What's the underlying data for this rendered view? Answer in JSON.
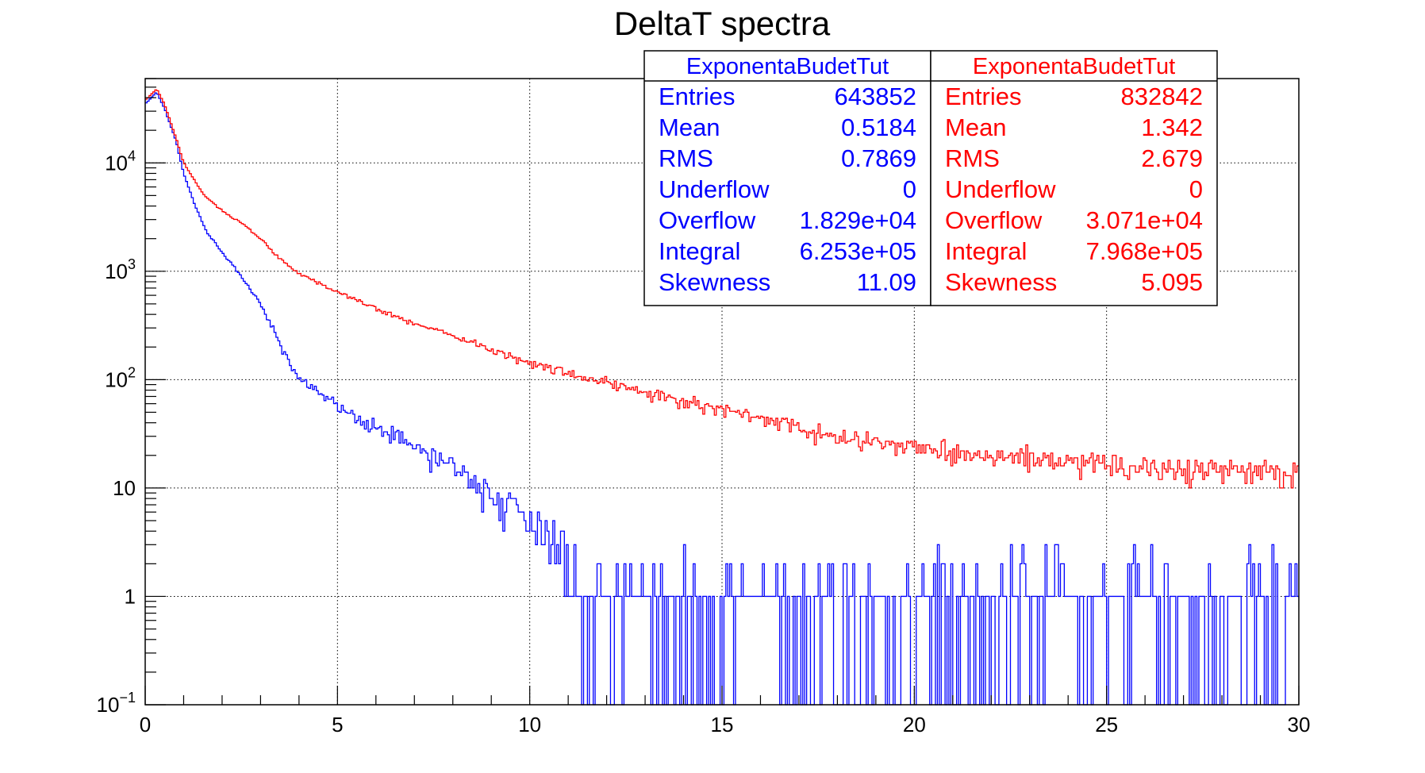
{
  "chart_data": {
    "type": "line",
    "title": "DeltaT spectra",
    "xlabel": "",
    "ylabel": "",
    "xlim": [
      0,
      30
    ],
    "ylim": [
      0.1,
      60000
    ],
    "yscale": "log",
    "grid": true,
    "x_ticks": [
      0,
      5,
      10,
      15,
      20,
      25,
      30
    ],
    "x_tick_labels": [
      "0",
      "5",
      "10",
      "15",
      "20",
      "25",
      "30"
    ],
    "y_ticks": [
      0.1,
      1,
      10,
      100,
      1000,
      10000
    ],
    "y_tick_labels": [
      {
        "base": "10",
        "exp": "−1"
      },
      {
        "base": "1",
        "exp": ""
      },
      {
        "base": "10",
        "exp": ""
      },
      {
        "base": "10",
        "exp": "2"
      },
      {
        "base": "10",
        "exp": "3"
      },
      {
        "base": "10",
        "exp": "4"
      }
    ],
    "series": [
      {
        "color": "#0000ff",
        "x": [
          0.0,
          0.3,
          0.5,
          0.8,
          1.0,
          1.3,
          1.6,
          2.0,
          2.5,
          3.0,
          3.3,
          3.6,
          4.0,
          4.5,
          5.0,
          5.5,
          6.0,
          6.5,
          7.0,
          8.0,
          9.0,
          10.0,
          11.0,
          12.0,
          13.0,
          15.0,
          17.0,
          20.0,
          25.0,
          30.0
        ],
        "y_peak": [
          35000,
          45000,
          32000,
          16000,
          8000,
          4000,
          2300,
          1500,
          900,
          500,
          300,
          180,
          100,
          75,
          55,
          45,
          38,
          30,
          24,
          16,
          9,
          5,
          3,
          2,
          1.6,
          1.2,
          1.1,
          1.0,
          1.0,
          1.0
        ]
      },
      {
        "color": "#ff0000",
        "x": [
          0.0,
          0.3,
          0.5,
          0.8,
          1.0,
          1.5,
          2.0,
          2.5,
          3.0,
          3.5,
          4.0,
          5.0,
          6.0,
          7.0,
          8.0,
          9.0,
          10.0,
          11.0,
          12.0,
          13.0,
          14.0,
          15.0,
          16.0,
          17.0,
          18.0,
          20.0,
          22.0,
          25.0,
          27.0,
          30.0
        ],
        "y_peak": [
          38000,
          48000,
          35000,
          17000,
          10000,
          5200,
          3600,
          2800,
          2000,
          1300,
          950,
          650,
          450,
          330,
          250,
          190,
          145,
          115,
          92,
          76,
          63,
          53,
          43,
          36,
          30,
          24,
          20,
          16,
          15,
          14
        ]
      }
    ],
    "stats_boxes": [
      {
        "title": "ExponentaBudetTut",
        "color": "#0000ff",
        "rows": [
          {
            "label": "Entries",
            "value": "643852"
          },
          {
            "label": "Mean",
            "value": "0.5184"
          },
          {
            "label": "RMS",
            "value": "0.7869"
          },
          {
            "label": "Underflow",
            "value": "0"
          },
          {
            "label": "Overflow",
            "value": "1.829e+04"
          },
          {
            "label": "Integral",
            "value": "6.253e+05"
          },
          {
            "label": "Skewness",
            "value": "11.09"
          }
        ]
      },
      {
        "title": "ExponentaBudetTut",
        "color": "#ff0000",
        "rows": [
          {
            "label": "Entries",
            "value": "832842"
          },
          {
            "label": "Mean",
            "value": "1.342"
          },
          {
            "label": "RMS",
            "value": "2.679"
          },
          {
            "label": "Underflow",
            "value": "0"
          },
          {
            "label": "Overflow",
            "value": "3.071e+04"
          },
          {
            "label": "Integral",
            "value": "7.968e+05"
          },
          {
            "label": "Skewness",
            "value": "5.095"
          }
        ]
      }
    ]
  }
}
